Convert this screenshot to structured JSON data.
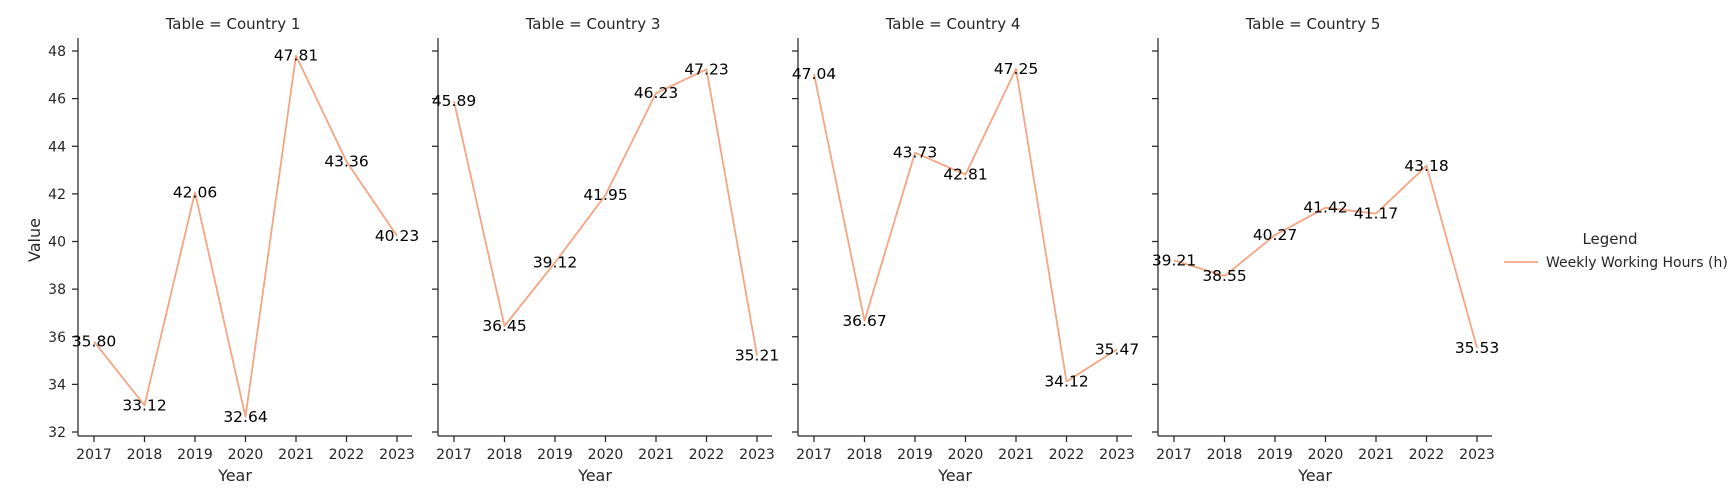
{
  "chart_data": {
    "type": "line",
    "ylabel": "Value",
    "xlabel": "Year",
    "ylim": [
      32,
      48
    ],
    "yticks": [
      32,
      34,
      36,
      38,
      40,
      42,
      44,
      46,
      48
    ],
    "x": [
      "2017",
      "2018",
      "2019",
      "2020",
      "2021",
      "2022",
      "2023"
    ],
    "line_color": "#f4a582",
    "legend": {
      "title": "Legend",
      "entries": [
        "Weekly Working Hours (h)"
      ],
      "placement": "right"
    },
    "panels": [
      {
        "title": "Table = Country 1",
        "series": [
          {
            "name": "Weekly Working Hours (h)",
            "values": [
              35.8,
              33.12,
              42.06,
              32.64,
              47.81,
              43.36,
              40.23
            ]
          }
        ],
        "labels": [
          "35.80",
          "33.12",
          "42.06",
          "32.64",
          "47.81",
          "43.36",
          "40.23"
        ]
      },
      {
        "title": "Table = Country 3",
        "series": [
          {
            "name": "Weekly Working Hours (h)",
            "values": [
              45.89,
              36.45,
              39.12,
              41.95,
              46.23,
              47.23,
              35.21
            ]
          }
        ],
        "labels": [
          "45.89",
          "36.45",
          "39.12",
          "41.95",
          "46.23",
          "47.23",
          "35.21"
        ]
      },
      {
        "title": "Table = Country 4",
        "series": [
          {
            "name": "Weekly Working Hours (h)",
            "values": [
              47.04,
              36.67,
              43.73,
              42.81,
              47.25,
              34.12,
              35.47
            ]
          }
        ],
        "labels": [
          "47.04",
          "36.67",
          "43.73",
          "42.81",
          "47.25",
          "34.12",
          "35.47"
        ]
      },
      {
        "title": "Table = Country 5",
        "series": [
          {
            "name": "Weekly Working Hours (h)",
            "values": [
              39.21,
              38.55,
              40.27,
              41.42,
              41.17,
              43.18,
              35.53
            ]
          }
        ],
        "labels": [
          "39.21",
          "38.55",
          "40.27",
          "41.42",
          "41.17",
          "43.18",
          "35.53"
        ]
      }
    ]
  }
}
